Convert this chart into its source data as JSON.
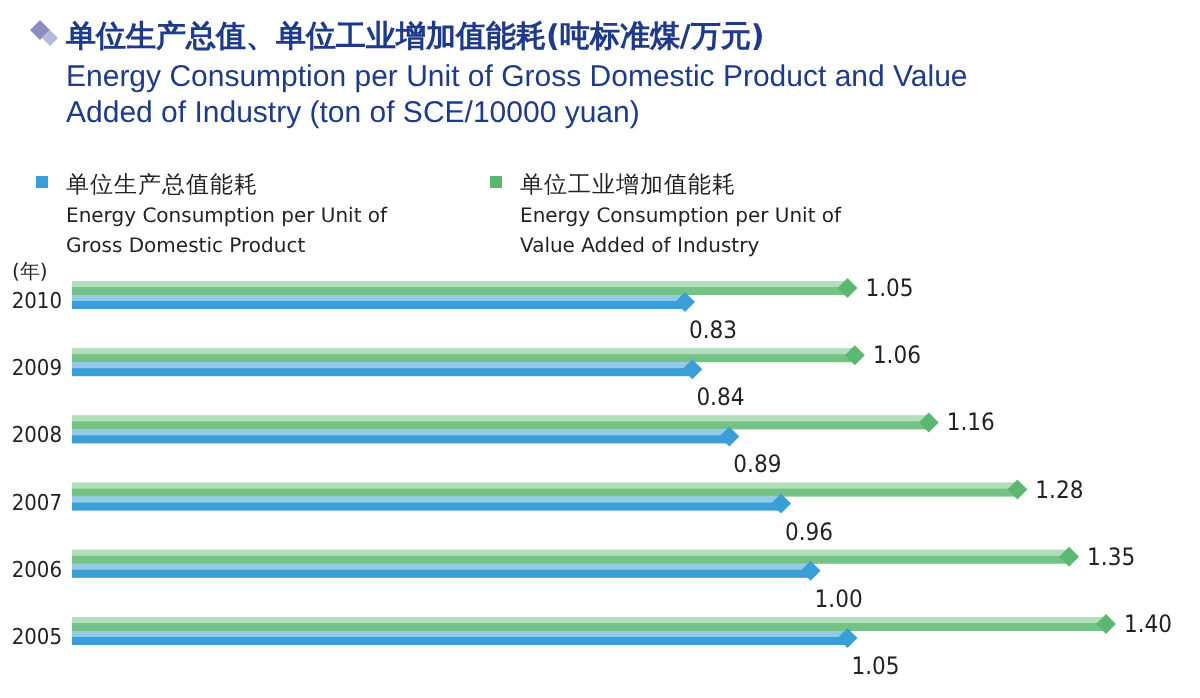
{
  "chart_data": {
    "type": "bar",
    "orientation": "horizontal",
    "title": "单位生产总值、单位工业增加值能耗(吨标准煤/万元)",
    "subtitle": "Energy Consumption per Unit of Gross Domestic Product and Value\nAdded of Industry (ton of SCE/10000 yuan)",
    "ylabel": "(年)",
    "categories": [
      "2010",
      "2009",
      "2008",
      "2007",
      "2006",
      "2005"
    ],
    "series": [
      {
        "name": "单位工业增加值能耗\nEnergy Consumption per Unit of\nValue Added of Industry",
        "color": "#5cb870",
        "values": [
          1.05,
          1.06,
          1.16,
          1.28,
          1.35,
          1.4
        ],
        "value_labels": [
          "1.05",
          "1.06",
          "1.16",
          "1.28",
          "1.35",
          "1.40"
        ]
      },
      {
        "name": "单位生产总值能耗\nEnergy Consumption per Unit of\nGross Domestic Product",
        "color": "#3a9fd6",
        "values": [
          0.83,
          0.84,
          0.89,
          0.96,
          1.0,
          1.05
        ],
        "value_labels": [
          "0.83",
          "0.84",
          "0.89",
          "0.96",
          "1.00",
          "1.05"
        ]
      }
    ],
    "legend": "top left"
  }
}
